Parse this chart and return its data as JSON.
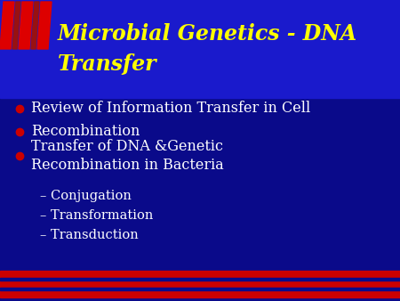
{
  "background_color": "#0a0a8a",
  "header_bg_color": "#1a1acc",
  "title_line1": "Microbial Genetics - DNA",
  "title_line2": "Transfer",
  "title_color": "#ffff00",
  "title_fontsize": 17,
  "title_fontstyle": "italic",
  "bullet_dot_color": "#cc0000",
  "bullet_text_color": "#ffffff",
  "bullet_fontsize": 11.5,
  "sub_bullet_fontsize": 10.5,
  "sub_bullet_color": "#ffffff",
  "bullets": [
    "Review of Information Transfer in Cell",
    "Recombination",
    "Transfer of DNA &Genetic\nRecombination in Bacteria"
  ],
  "sub_bullets": [
    "– Conjugation",
    "– Transformation",
    "– Transduction"
  ],
  "stripe_red": "#dd0000",
  "stripe_dark": "#991111",
  "footer_red": "#cc0000",
  "footer_bg": "#0a0a8a"
}
